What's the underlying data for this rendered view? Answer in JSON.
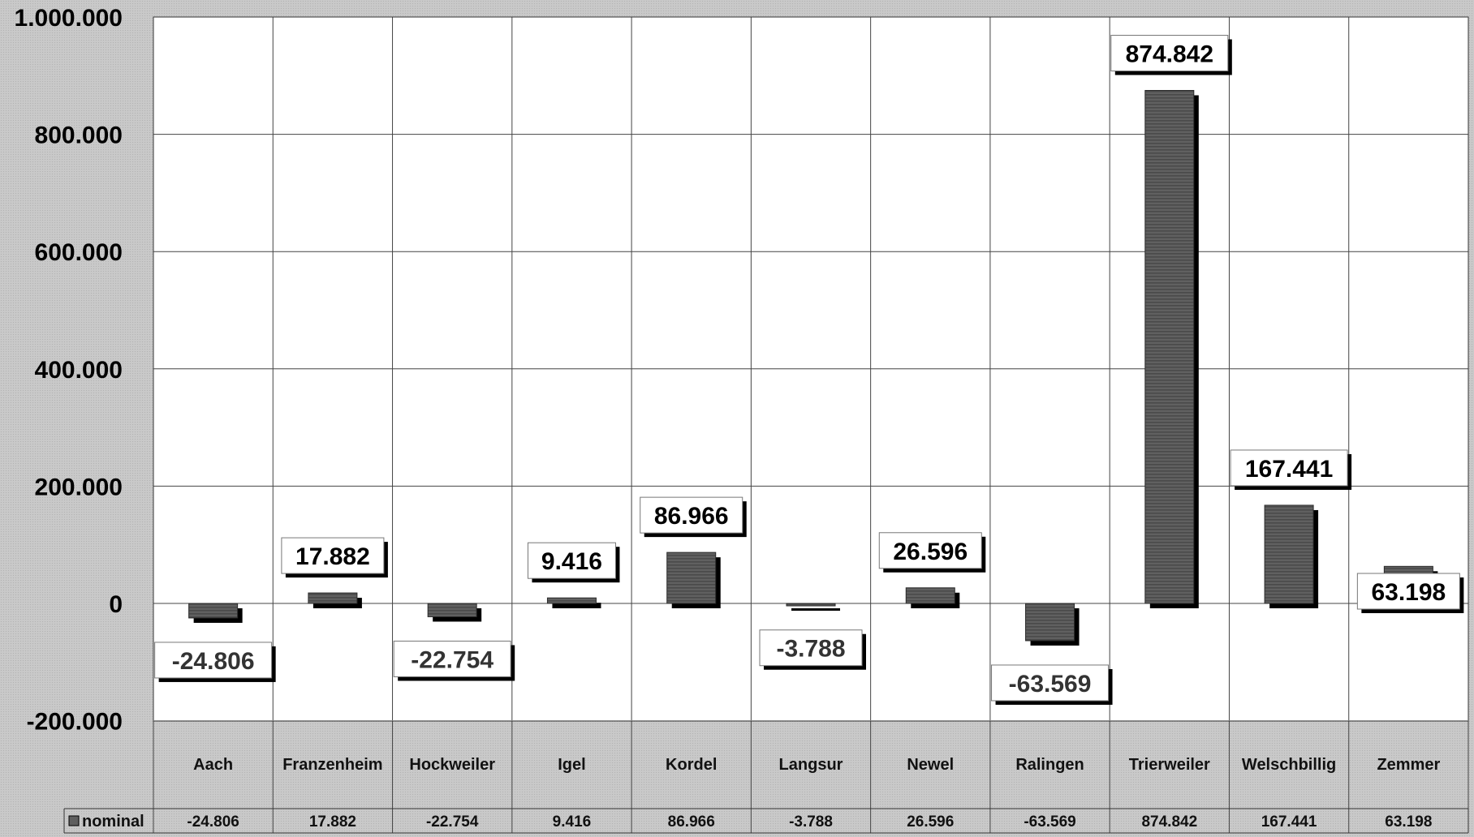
{
  "chart_data": {
    "type": "bar",
    "title": "",
    "xlabel": "",
    "ylabel": "",
    "categories": [
      "Aach",
      "Franzenheim",
      "Hockweiler",
      "Igel",
      "Kordel",
      "Langsur",
      "Newel",
      "Ralingen",
      "Trierweiler",
      "Welschbillig",
      "Zemmer"
    ],
    "series": [
      {
        "name": "nominal",
        "values": [
          -24806,
          17882,
          -22754,
          9416,
          86966,
          -3788,
          26596,
          -63569,
          874842,
          167441,
          63198
        ],
        "labels": [
          "-24.806",
          "17.882",
          "-22.754",
          "9.416",
          "86.966",
          "-3.788",
          "26.596",
          "-63.569",
          "874.842",
          "167.441",
          "63.198"
        ]
      }
    ],
    "ylim": [
      -200000,
      1000000
    ],
    "yticks": [
      -200000,
      0,
      200000,
      400000,
      600000,
      800000,
      1000000
    ],
    "ytick_labels": [
      "-200.000",
      "0",
      "200.000",
      "400.000",
      "600.000",
      "800.000",
      "1.000.000"
    ],
    "grid": true,
    "legend_placement": "data-table-row",
    "data_table": true,
    "colors": {
      "bar": "#5f5f5f",
      "bar_shadow": "#000000",
      "plot_background": "#ffffff",
      "page_background": "#c9c9c9",
      "grid": "#555555"
    }
  }
}
